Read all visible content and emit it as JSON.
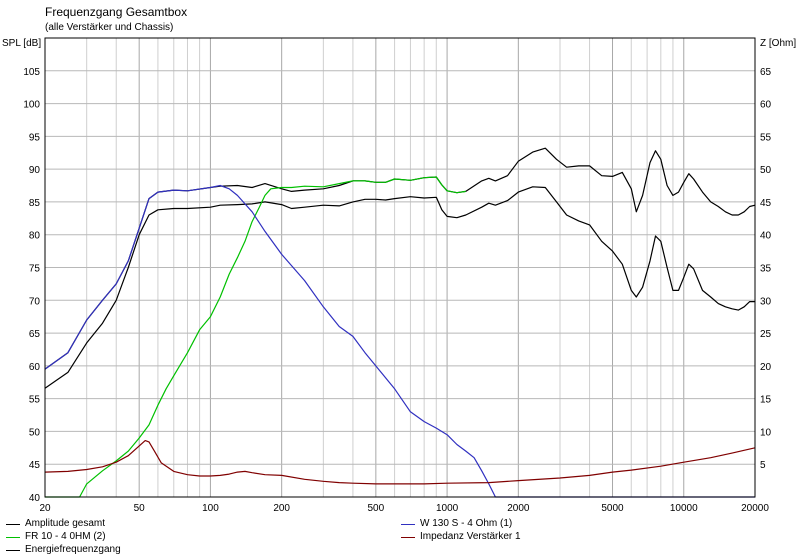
{
  "chart_data": {
    "type": "line",
    "title": "Frequenzgang Gesamtbox",
    "subtitle": "(alle Verstärker und Chassis)",
    "ylabel_left": "SPL [dB]",
    "ylabel_right": "Z [Ohm]",
    "x_scale": "log",
    "xlim": [
      20,
      20000
    ],
    "ylim_left": [
      40,
      110
    ],
    "ylim_right": [
      0,
      70
    ],
    "grid": true,
    "x_tick_labels": [
      "20",
      "50",
      "100",
      "200",
      "500",
      "1000",
      "2000",
      "5000",
      "10000",
      "20000"
    ],
    "x_tick_values": [
      20,
      50,
      100,
      200,
      500,
      1000,
      2000,
      5000,
      10000,
      20000
    ],
    "y_left_tick_labels": [
      "40",
      "45",
      "50",
      "55",
      "60",
      "65",
      "70",
      "75",
      "80",
      "85",
      "90",
      "95",
      "100",
      "105"
    ],
    "y_right_tick_labels": [
      "5",
      "10",
      "15",
      "20",
      "25",
      "30",
      "35",
      "40",
      "45",
      "50",
      "55",
      "60",
      "65"
    ],
    "legend_placement": "bottom",
    "series": [
      {
        "name": "Amplitude gesamt",
        "axis": "left",
        "color": "#000000",
        "points": [
          [
            20,
            56.6
          ],
          [
            25,
            59
          ],
          [
            30,
            63.5
          ],
          [
            35,
            66.5
          ],
          [
            40,
            70
          ],
          [
            45,
            75
          ],
          [
            50,
            80
          ],
          [
            55,
            83
          ],
          [
            60,
            83.8
          ],
          [
            70,
            84
          ],
          [
            80,
            84
          ],
          [
            100,
            84.2
          ],
          [
            110,
            84.5
          ],
          [
            130,
            84.6
          ],
          [
            150,
            84.7
          ],
          [
            170,
            85
          ],
          [
            200,
            84.6
          ],
          [
            220,
            84
          ],
          [
            250,
            84.2
          ],
          [
            300,
            84.5
          ],
          [
            350,
            84.4
          ],
          [
            400,
            85
          ],
          [
            450,
            85.4
          ],
          [
            500,
            85.4
          ],
          [
            550,
            85.3
          ],
          [
            600,
            85.5
          ],
          [
            700,
            85.8
          ],
          [
            800,
            85.6
          ],
          [
            900,
            85.7
          ],
          [
            950,
            83.8
          ],
          [
            1000,
            82.8
          ],
          [
            1100,
            82.6
          ],
          [
            1200,
            83
          ],
          [
            1400,
            84.2
          ],
          [
            1500,
            84.8
          ],
          [
            1600,
            84.5
          ],
          [
            1800,
            85.2
          ],
          [
            2000,
            86.5
          ],
          [
            2300,
            87.3
          ],
          [
            2600,
            87.2
          ],
          [
            2900,
            85
          ],
          [
            3200,
            83
          ],
          [
            3600,
            82.1
          ],
          [
            4000,
            81.5
          ],
          [
            4500,
            79
          ],
          [
            5000,
            77.5
          ],
          [
            5500,
            75.5
          ],
          [
            6000,
            71.5
          ],
          [
            6300,
            70.5
          ],
          [
            6700,
            72
          ],
          [
            7200,
            76
          ],
          [
            7600,
            79.8
          ],
          [
            8000,
            79
          ],
          [
            8500,
            75
          ],
          [
            9000,
            71.5
          ],
          [
            9500,
            71.5
          ],
          [
            10000,
            73.5
          ],
          [
            10500,
            75.5
          ],
          [
            11000,
            74.8
          ],
          [
            12000,
            71.5
          ],
          [
            13000,
            70.5
          ],
          [
            14000,
            69.5
          ],
          [
            15000,
            69
          ],
          [
            16000,
            68.7
          ],
          [
            17000,
            68.5
          ],
          [
            18000,
            69
          ],
          [
            19000,
            69.8
          ],
          [
            20000,
            69.8
          ]
        ]
      },
      {
        "name": "Energiefrequenzgang",
        "axis": "left",
        "color": "#000000",
        "points": [
          [
            20,
            59.5
          ],
          [
            25,
            62
          ],
          [
            30,
            67
          ],
          [
            35,
            70
          ],
          [
            40,
            72.5
          ],
          [
            45,
            76
          ],
          [
            50,
            81
          ],
          [
            55,
            85.5
          ],
          [
            60,
            86.5
          ],
          [
            70,
            86.8
          ],
          [
            80,
            86.7
          ],
          [
            100,
            87.2
          ],
          [
            110,
            87.4
          ],
          [
            130,
            87.5
          ],
          [
            150,
            87.2
          ],
          [
            170,
            87.8
          ],
          [
            200,
            87
          ],
          [
            220,
            86.6
          ],
          [
            250,
            86.8
          ],
          [
            300,
            87
          ],
          [
            350,
            87.5
          ],
          [
            400,
            88.2
          ],
          [
            450,
            88.2
          ],
          [
            500,
            88
          ],
          [
            550,
            88
          ],
          [
            600,
            88.5
          ],
          [
            700,
            88.3
          ],
          [
            800,
            88.7
          ],
          [
            900,
            88.8
          ],
          [
            950,
            87.6
          ],
          [
            1000,
            86.7
          ],
          [
            1100,
            86.4
          ],
          [
            1200,
            86.6
          ],
          [
            1400,
            88.2
          ],
          [
            1500,
            88.6
          ],
          [
            1600,
            88.2
          ],
          [
            1800,
            89
          ],
          [
            2000,
            91.2
          ],
          [
            2300,
            92.6
          ],
          [
            2600,
            93.2
          ],
          [
            2900,
            91.5
          ],
          [
            3200,
            90.3
          ],
          [
            3600,
            90.5
          ],
          [
            4000,
            90.5
          ],
          [
            4500,
            89
          ],
          [
            5000,
            88.9
          ],
          [
            5500,
            89.5
          ],
          [
            6000,
            87
          ],
          [
            6300,
            83.5
          ],
          [
            6700,
            86
          ],
          [
            7200,
            91
          ],
          [
            7600,
            92.8
          ],
          [
            8000,
            91.5
          ],
          [
            8500,
            87.5
          ],
          [
            9000,
            86
          ],
          [
            9500,
            86.5
          ],
          [
            10000,
            88
          ],
          [
            10500,
            89.3
          ],
          [
            11000,
            88.5
          ],
          [
            12000,
            86.5
          ],
          [
            13000,
            85
          ],
          [
            14000,
            84.3
          ],
          [
            15000,
            83.5
          ],
          [
            16000,
            83
          ],
          [
            17000,
            83
          ],
          [
            18000,
            83.5
          ],
          [
            19000,
            84.3
          ],
          [
            20000,
            84.5
          ]
        ]
      },
      {
        "name": "FR 10 - 4 0HM (2)",
        "axis": "left",
        "color": "#00c000",
        "points": [
          [
            20,
            40
          ],
          [
            25,
            40
          ],
          [
            28,
            40
          ],
          [
            30,
            42
          ],
          [
            35,
            44
          ],
          [
            40,
            45.5
          ],
          [
            45,
            47
          ],
          [
            50,
            49
          ],
          [
            55,
            51
          ],
          [
            60,
            54
          ],
          [
            65,
            56.5
          ],
          [
            70,
            58.5
          ],
          [
            80,
            62
          ],
          [
            90,
            65.5
          ],
          [
            100,
            67.5
          ],
          [
            110,
            70.5
          ],
          [
            120,
            74
          ],
          [
            130,
            76.5
          ],
          [
            140,
            79
          ],
          [
            150,
            82
          ],
          [
            160,
            84
          ],
          [
            170,
            86
          ],
          [
            180,
            87
          ],
          [
            200,
            87.2
          ],
          [
            220,
            87.2
          ],
          [
            250,
            87.4
          ],
          [
            300,
            87.3
          ],
          [
            350,
            87.8
          ],
          [
            400,
            88.2
          ],
          [
            450,
            88.2
          ],
          [
            500,
            88
          ],
          [
            550,
            88
          ],
          [
            600,
            88.5
          ],
          [
            700,
            88.3
          ],
          [
            800,
            88.7
          ],
          [
            900,
            88.8
          ],
          [
            950,
            87.6
          ],
          [
            1000,
            86.7
          ],
          [
            1100,
            86.4
          ],
          [
            1200,
            86.6
          ]
        ]
      },
      {
        "name": "W 130 S - 4 Ohm (1)",
        "axis": "left",
        "color": "#3030c0",
        "points": [
          [
            20,
            59.5
          ],
          [
            25,
            62
          ],
          [
            30,
            67
          ],
          [
            35,
            70
          ],
          [
            40,
            72.5
          ],
          [
            45,
            76
          ],
          [
            50,
            81
          ],
          [
            55,
            85.5
          ],
          [
            60,
            86.5
          ],
          [
            70,
            86.8
          ],
          [
            80,
            86.7
          ],
          [
            100,
            87.2
          ],
          [
            110,
            87.5
          ],
          [
            120,
            87
          ],
          [
            130,
            86
          ],
          [
            150,
            83.5
          ],
          [
            170,
            80.5
          ],
          [
            200,
            77
          ],
          [
            250,
            73
          ],
          [
            300,
            69
          ],
          [
            350,
            66
          ],
          [
            400,
            64.5
          ],
          [
            450,
            62
          ],
          [
            500,
            60
          ],
          [
            600,
            56.5
          ],
          [
            700,
            53
          ],
          [
            800,
            51.5
          ],
          [
            900,
            50.5
          ],
          [
            1000,
            49.5
          ],
          [
            1100,
            48
          ],
          [
            1200,
            47
          ],
          [
            1300,
            46
          ],
          [
            1400,
            44
          ],
          [
            1500,
            42
          ],
          [
            1600,
            40
          ],
          [
            1700,
            40
          ],
          [
            2000,
            40
          ],
          [
            5000,
            40
          ],
          [
            10000,
            40
          ],
          [
            20000,
            40
          ]
        ]
      },
      {
        "name": "Impedanz Verstärker 1",
        "axis": "right",
        "color": "#800000",
        "points": [
          [
            20,
            3.8
          ],
          [
            25,
            3.9
          ],
          [
            30,
            4.2
          ],
          [
            35,
            4.6
          ],
          [
            40,
            5.3
          ],
          [
            45,
            6.3
          ],
          [
            50,
            7.8
          ],
          [
            53,
            8.6
          ],
          [
            55,
            8.4
          ],
          [
            58,
            7
          ],
          [
            62,
            5.2
          ],
          [
            70,
            3.9
          ],
          [
            80,
            3.4
          ],
          [
            90,
            3.2
          ],
          [
            100,
            3.2
          ],
          [
            110,
            3.3
          ],
          [
            120,
            3.5
          ],
          [
            130,
            3.8
          ],
          [
            140,
            3.9
          ],
          [
            150,
            3.7
          ],
          [
            170,
            3.4
          ],
          [
            200,
            3.3
          ],
          [
            250,
            2.7
          ],
          [
            300,
            2.4
          ],
          [
            350,
            2.2
          ],
          [
            400,
            2.1
          ],
          [
            500,
            2
          ],
          [
            600,
            2
          ],
          [
            700,
            2
          ],
          [
            800,
            2
          ],
          [
            1000,
            2.1
          ],
          [
            1500,
            2.2
          ],
          [
            2000,
            2.5
          ],
          [
            3000,
            2.9
          ],
          [
            4000,
            3.3
          ],
          [
            5000,
            3.8
          ],
          [
            6000,
            4.1
          ],
          [
            8000,
            4.7
          ],
          [
            10000,
            5.3
          ],
          [
            13000,
            6
          ],
          [
            16000,
            6.7
          ],
          [
            20000,
            7.5
          ]
        ]
      }
    ]
  }
}
